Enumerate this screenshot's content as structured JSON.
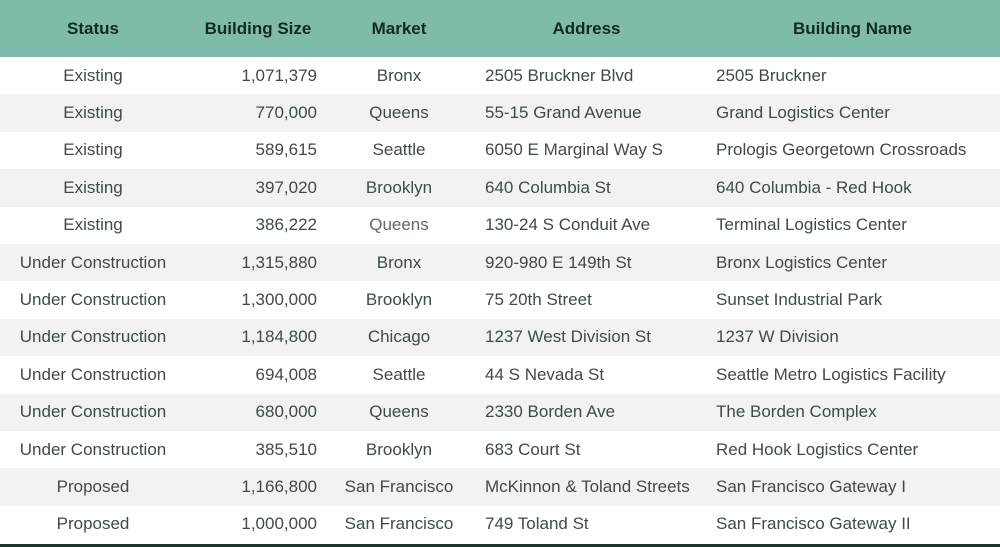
{
  "colors": {
    "header_bg": "#7ebbab",
    "header_text": "#132a21",
    "body_text": "#3e4b48",
    "muted_text": "#5f696b",
    "stripe_bg": "#f2f2f2",
    "bottom_border": "#16392b"
  },
  "table": {
    "columns": [
      {
        "key": "status",
        "label": "Status",
        "align": "center"
      },
      {
        "key": "building_size",
        "label": "Building Size",
        "align": "right"
      },
      {
        "key": "market",
        "label": "Market",
        "align": "center"
      },
      {
        "key": "address",
        "label": "Address",
        "align": "left"
      },
      {
        "key": "building_name",
        "label": "Building Name",
        "align": "left"
      }
    ],
    "muted_cell": {
      "row": 4,
      "column": "market"
    },
    "rows": [
      {
        "status": "Existing",
        "building_size": "1,071,379",
        "market": "Bronx",
        "address": "2505 Bruckner Blvd",
        "building_name": "2505 Bruckner"
      },
      {
        "status": "Existing",
        "building_size": "770,000",
        "market": "Queens",
        "address": "55-15 Grand Avenue",
        "building_name": "Grand Logistics Center"
      },
      {
        "status": "Existing",
        "building_size": "589,615",
        "market": "Seattle",
        "address": "6050 E Marginal Way S",
        "building_name": "Prologis Georgetown Crossroads"
      },
      {
        "status": "Existing",
        "building_size": "397,020",
        "market": "Brooklyn",
        "address": "640 Columbia St",
        "building_name": "640 Columbia - Red Hook"
      },
      {
        "status": "Existing",
        "building_size": "386,222",
        "market": "Queens",
        "address": "130-24 S Conduit Ave",
        "building_name": "Terminal Logistics Center"
      },
      {
        "status": "Under Construction",
        "building_size": "1,315,880",
        "market": "Bronx",
        "address": "920-980 E 149th St",
        "building_name": "Bronx Logistics Center"
      },
      {
        "status": "Under Construction",
        "building_size": "1,300,000",
        "market": "Brooklyn",
        "address": "75 20th Street",
        "building_name": "Sunset Industrial Park"
      },
      {
        "status": "Under Construction",
        "building_size": "1,184,800",
        "market": "Chicago",
        "address": "1237 West Division St",
        "building_name": "1237 W Division"
      },
      {
        "status": "Under Construction",
        "building_size": "694,008",
        "market": "Seattle",
        "address": "44 S Nevada St",
        "building_name": "Seattle Metro Logistics Facility"
      },
      {
        "status": "Under Construction",
        "building_size": "680,000",
        "market": "Queens",
        "address": "2330 Borden Ave",
        "building_name": "The Borden Complex"
      },
      {
        "status": "Under Construction",
        "building_size": "385,510",
        "market": "Brooklyn",
        "address": "683 Court St",
        "building_name": "Red Hook Logistics Center"
      },
      {
        "status": "Proposed",
        "building_size": "1,166,800",
        "market": "San Francisco",
        "address": "McKinnon & Toland Streets",
        "building_name": "San Francisco Gateway I"
      },
      {
        "status": "Proposed",
        "building_size": "1,000,000",
        "market": "San Francisco",
        "address": "749 Toland St",
        "building_name": "San Francisco Gateway II"
      }
    ]
  }
}
